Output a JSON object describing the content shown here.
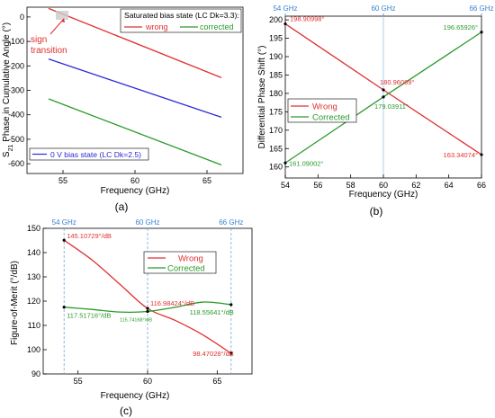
{
  "chart_data": [
    {
      "panel": "(a)",
      "type": "line",
      "xlabel": "Frequency (GHz)",
      "ylabel_main": "S",
      "ylabel_sub": "21",
      "ylabel_rest": " Phase in Cumulative Angle (°)",
      "xlim": [
        52.5,
        67.5
      ],
      "ylim": [
        -640,
        40
      ],
      "xticks": [
        55,
        60,
        65
      ],
      "yticks": [
        0,
        -100,
        -200,
        -300,
        -400,
        -500,
        -600
      ],
      "legend_top_title": "Saturated bias state (LC Dk=3.3):",
      "legend_bottom_title": "0 V bias state (LC Dk=2.5)",
      "annotation": "sign\ntransition",
      "series": [
        {
          "name": "wrong",
          "color": "#e03030",
          "x": [
            54,
            66
          ],
          "y": [
            35,
            -248
          ]
        },
        {
          "name": "corrected",
          "color": "#2a9a2a",
          "x": [
            54,
            66
          ],
          "y": [
            -335,
            -605
          ]
        },
        {
          "name": "",
          "color": "#2a2ad8",
          "x": [
            54,
            66
          ],
          "y": [
            -172,
            -410
          ]
        }
      ]
    },
    {
      "panel": "(b)",
      "type": "line",
      "xlabel": "Frequency (GHz)",
      "ylabel": "Differential Phase Shift (°)",
      "xlim": [
        54,
        66
      ],
      "ylim": [
        157,
        201
      ],
      "xticks": [
        54,
        56,
        58,
        60,
        62,
        64,
        66
      ],
      "yticks": [
        160,
        165,
        170,
        175,
        180,
        185,
        190,
        195,
        200
      ],
      "top_markers": [
        "54 GHz",
        "60 GHz",
        "66 GHz"
      ],
      "series": [
        {
          "name": "Wrong",
          "color": "#e03030",
          "x": [
            54,
            60,
            66
          ],
          "y": [
            198.90998,
            180.96089,
            163.34074
          ]
        },
        {
          "name": "Corrected",
          "color": "#2a9a2a",
          "x": [
            54,
            60,
            66
          ],
          "y": [
            161.09002,
            179.03911,
            196.65926
          ]
        }
      ],
      "data_labels": [
        "198.90998°",
        "180.96089°",
        "163.34074°",
        "161.09002°",
        "179.03911°",
        "196.65926°"
      ]
    },
    {
      "panel": "(c)",
      "type": "line",
      "xlabel": "Frequency (GHz)",
      "ylabel": "Figure-of-Merit (°/dB)",
      "xlim": [
        52.5,
        67.5
      ],
      "ylim": [
        90,
        150
      ],
      "xticks": [
        55,
        60,
        65
      ],
      "yticks": [
        90,
        100,
        110,
        120,
        130,
        140,
        150
      ],
      "top_markers": [
        "54 GHz",
        "60 GHz",
        "66 GHz"
      ],
      "series": [
        {
          "name": "Wrong",
          "color": "#e03030",
          "x": [
            54,
            56,
            58,
            60,
            62,
            64,
            66
          ],
          "y": [
            145.10729,
            137,
            127,
            116.98424,
            112,
            106,
            98.47028
          ]
        },
        {
          "name": "Corrected",
          "color": "#2a9a2a",
          "x": [
            54,
            56,
            58,
            60,
            62,
            64,
            66
          ],
          "y": [
            117.51716,
            116.6,
            115.5,
            115.74168,
            117.5,
            119.6,
            118.55641
          ]
        }
      ],
      "data_labels": [
        "145.10729°/dB",
        "116.98424°/dB",
        "98.47028°/dB",
        "117.51716°/dB",
        "115.74168°/dB",
        "118.55641°/dB"
      ]
    }
  ]
}
